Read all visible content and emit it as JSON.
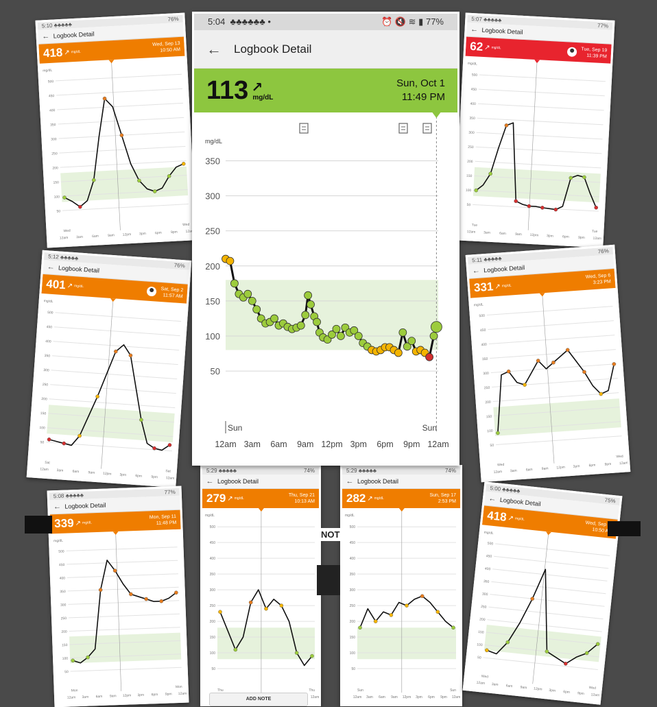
{
  "colors": {
    "orange": "#ef7d00",
    "red": "#e8242e",
    "green": "#8dc63f",
    "range": "#e6f2dc",
    "dot_green": "#9ccc3c",
    "dot_yellow": "#f4b400",
    "dot_orange": "#e57c1f",
    "dot_red": "#d32f2f"
  },
  "main": {
    "status": {
      "time": "5:04",
      "icons": "♣♣♣♣♣♣ •",
      "right_icons": "⏰ 🔇 ≋ ▮",
      "battery": "77%"
    },
    "app_title": "Logbook Detail",
    "reading": {
      "value": "113",
      "unit": "mg/dL",
      "trend": "↗",
      "day": "Sun, Oct 1",
      "time": "11:49 PM"
    },
    "annotation_icons": [
      "note-icon",
      "note-icon",
      "note-edit-icon"
    ],
    "chart_data": {
      "type": "line",
      "ylabel": "mg/dL",
      "yticks": [
        50,
        100,
        150,
        200,
        250,
        300,
        350
      ],
      "ylim": [
        10,
        370
      ],
      "target_range": [
        80,
        180
      ],
      "xticks": [
        "12am",
        "3am",
        "6am",
        "9am",
        "12pm",
        "3pm",
        "6pm",
        "9pm",
        "12am"
      ],
      "day_labels": [
        "Sun",
        "Sun"
      ],
      "x_hours": [
        0,
        0.5,
        1,
        1.5,
        2,
        2.5,
        3,
        3.5,
        4,
        4.5,
        5,
        5.5,
        6,
        6.5,
        7,
        7.5,
        8,
        8.5,
        9,
        9.3,
        9.6,
        10,
        10.3,
        10.6,
        11,
        11.5,
        12,
        12.5,
        13,
        13.5,
        14,
        14.5,
        15,
        15.5,
        16,
        16.5,
        17,
        17.5,
        18,
        18.5,
        19,
        19.5,
        20,
        20.5,
        21,
        21.5,
        22,
        22.5,
        23,
        23.5,
        23.8
      ],
      "y_values": [
        210,
        207,
        175,
        160,
        155,
        160,
        150,
        138,
        125,
        118,
        120,
        125,
        115,
        118,
        113,
        110,
        112,
        115,
        130,
        158,
        145,
        128,
        120,
        105,
        98,
        95,
        102,
        110,
        100,
        112,
        105,
        108,
        100,
        90,
        85,
        80,
        78,
        80,
        84,
        84,
        80,
        76,
        105,
        85,
        93,
        78,
        80,
        76,
        70,
        100,
        113
      ]
    }
  },
  "cards": [
    {
      "time": "5:10",
      "battery": "76%",
      "title": "Logbook Detail",
      "value": "418",
      "unit": "mg/dL",
      "day": "Wed, Sep 13",
      "time2": "10:50 AM",
      "band": "orange",
      "xticks": [
        "12am",
        "3am",
        "6am",
        "9am",
        "12pm",
        "3pm",
        "6pm",
        "9pm",
        "12am"
      ],
      "day_start": "Wed",
      "day_end": "Wed",
      "y": [
        95,
        80,
        60,
        80,
        150,
        300,
        430,
        400,
        300,
        200,
        140,
        110,
        100,
        110,
        150,
        180,
        190
      ],
      "show_avatar": false
    },
    {
      "time": "5:07",
      "battery": "77%",
      "title": "Logbook Detail",
      "value": "62",
      "unit": "mg/dL",
      "day": "Tue, Sep 19",
      "time2": "11:39 PM",
      "band": "red",
      "xticks": [
        "12am",
        "3am",
        "6am",
        "9am",
        "12pm",
        "3pm",
        "6pm",
        "9pm",
        "12am"
      ],
      "day_start": "Tue",
      "day_end": "Tue",
      "y": [
        100,
        120,
        160,
        250,
        330,
        340,
        70,
        60,
        55,
        55,
        52,
        50,
        48,
        60,
        160,
        170,
        165,
        110,
        62
      ],
      "show_avatar": true
    },
    {
      "time": "5:12",
      "battery": "76%",
      "title": "Logbook Detail",
      "value": "401",
      "unit": "mg/dL",
      "day": "Sat, Sep 2",
      "time2": "11:57 AM",
      "band": "orange",
      "xticks": [
        "12am",
        "3am",
        "6am",
        "9am",
        "12pm",
        "3pm",
        "6pm",
        "9pm",
        "12am"
      ],
      "day_start": "Sat",
      "day_end": "Sat",
      "y": [
        60,
        55,
        50,
        45,
        80,
        150,
        220,
        300,
        380,
        405,
        370,
        260,
        150,
        70,
        55,
        50,
        70
      ],
      "show_avatar": true
    },
    {
      "time": "5:11",
      "battery": "76%",
      "title": "Logbook Detail",
      "value": "331",
      "unit": "mg/dL",
      "day": "Wed, Sep 6",
      "time2": "3:23 PM",
      "band": "orange",
      "xticks": [
        "12am",
        "3am",
        "6am",
        "9am",
        "12pm",
        "3pm",
        "6pm",
        "9pm",
        "12am"
      ],
      "day_start": "Wed",
      "day_end": "Wed",
      "y": [
        90,
        290,
        300,
        260,
        250,
        290,
        330,
        300,
        320,
        340,
        360,
        320,
        280,
        230,
        200,
        210,
        300
      ],
      "show_avatar": false
    },
    {
      "time": "5:08",
      "battery": "77%",
      "title": "Logbook Detail",
      "value": "339",
      "unit": "mg/dL",
      "day": "Mon, Sep 11",
      "time2": "11:48 PM",
      "band": "orange",
      "xticks": [
        "12am",
        "3am",
        "6am",
        "9am",
        "12pm",
        "3pm",
        "6pm",
        "9pm",
        "12am"
      ],
      "day_start": "Mon",
      "day_end": "Mon",
      "y": [
        90,
        80,
        100,
        130,
        350,
        460,
        420,
        370,
        330,
        320,
        310,
        300,
        300,
        310,
        330
      ],
      "show_avatar": false
    },
    {
      "time": "5:29",
      "battery": "74%",
      "title": "Logbook Detail",
      "value": "279",
      "unit": "mg/dL",
      "day": "Thu, Sep 21",
      "time2": "10:13 AM",
      "band": "orange",
      "xticks": [
        "12am",
        "3am",
        "6am",
        "9am",
        "12pm",
        "3pm",
        "6pm",
        "9pm",
        "12am"
      ],
      "day_start": "Thu",
      "day_end": "Thu",
      "y": [
        230,
        170,
        110,
        150,
        260,
        300,
        240,
        270,
        250,
        200,
        100,
        60,
        90
      ],
      "show_avatar": false
    },
    {
      "time": "5:29",
      "battery": "74%",
      "title": "Logbook Detail",
      "value": "282",
      "unit": "mg/dL",
      "day": "Sun, Sep 17",
      "time2": "2:53 PM",
      "band": "orange",
      "xticks": [
        "12am",
        "3am",
        "6am",
        "9am",
        "12pm",
        "3pm",
        "6pm",
        "9pm",
        "12am"
      ],
      "day_start": "Sun",
      "day_end": "Sun",
      "y": [
        180,
        240,
        200,
        230,
        220,
        260,
        250,
        270,
        280,
        260,
        230,
        200,
        180
      ],
      "show_avatar": false
    },
    {
      "time": "5:00",
      "battery": "75%",
      "title": "Logbook Detail",
      "value": "418",
      "unit": "mg/dL",
      "day": "Wed, Sep 13",
      "time2": "10:50 AM",
      "band": "orange",
      "xticks": [
        "12am",
        "3am",
        "6am",
        "9am",
        "12pm",
        "3pm",
        "6pm",
        "9pm",
        "12am"
      ],
      "day_start": "Wed",
      "day_end": "Wed",
      "y": [
        80,
        70,
        120,
        200,
        300,
        420,
        100,
        80,
        60,
        90,
        110,
        150
      ],
      "show_avatar": false
    }
  ],
  "add_note": "ADD NOTE",
  "note_fragment": "NOT"
}
